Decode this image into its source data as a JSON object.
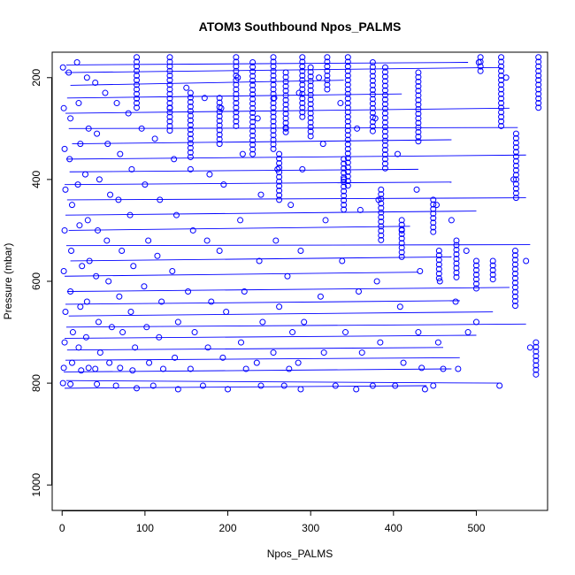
{
  "chart_data": {
    "type": "scatter",
    "title": "ATOM3 Southbound Npos_PALMS",
    "xlabel": "Npos_PALMS",
    "ylabel": "Pressure (mbar)",
    "xlim": [
      -12,
      586
    ],
    "ylim": [
      1050,
      150
    ],
    "y_reversed": true,
    "x_ticks": [
      0,
      100,
      200,
      300,
      400,
      500
    ],
    "y_ticks": [
      200,
      400,
      600,
      800,
      1000
    ],
    "grid": false,
    "legend": "none",
    "series_color": "#0000ff",
    "points": [
      [
        1,
        180
      ],
      [
        2,
        260
      ],
      [
        3,
        340
      ],
      [
        4,
        420
      ],
      [
        3,
        500
      ],
      [
        2,
        580
      ],
      [
        4,
        660
      ],
      [
        3,
        720
      ],
      [
        2,
        770
      ],
      [
        1,
        800
      ],
      [
        8,
        190
      ],
      [
        10,
        280
      ],
      [
        9,
        360
      ],
      [
        12,
        450
      ],
      [
        11,
        540
      ],
      [
        10,
        620
      ],
      [
        13,
        700
      ],
      [
        12,
        760
      ],
      [
        10,
        802
      ],
      [
        18,
        170
      ],
      [
        20,
        250
      ],
      [
        22,
        330
      ],
      [
        19,
        410
      ],
      [
        21,
        490
      ],
      [
        24,
        570
      ],
      [
        22,
        650
      ],
      [
        20,
        730
      ],
      [
        23,
        775
      ],
      [
        30,
        200
      ],
      [
        32,
        300
      ],
      [
        28,
        390
      ],
      [
        31,
        480
      ],
      [
        33,
        560
      ],
      [
        30,
        640
      ],
      [
        29,
        710
      ],
      [
        32,
        770
      ],
      [
        40,
        210
      ],
      [
        42,
        310
      ],
      [
        45,
        400
      ],
      [
        43,
        500
      ],
      [
        41,
        590
      ],
      [
        44,
        680
      ],
      [
        46,
        740
      ],
      [
        40,
        772
      ],
      [
        42,
        802
      ],
      [
        52,
        230
      ],
      [
        55,
        330
      ],
      [
        58,
        430
      ],
      [
        54,
        520
      ],
      [
        56,
        600
      ],
      [
        60,
        690
      ],
      [
        57,
        760
      ],
      [
        66,
        250
      ],
      [
        70,
        350
      ],
      [
        68,
        440
      ],
      [
        72,
        540
      ],
      [
        69,
        630
      ],
      [
        73,
        700
      ],
      [
        70,
        770
      ],
      [
        65,
        805
      ],
      [
        80,
        270
      ],
      [
        84,
        380
      ],
      [
        82,
        470
      ],
      [
        86,
        570
      ],
      [
        83,
        660
      ],
      [
        88,
        730
      ],
      [
        85,
        775
      ],
      [
        90,
        810
      ],
      [
        96,
        300
      ],
      [
        100,
        410
      ],
      [
        104,
        520
      ],
      [
        99,
        610
      ],
      [
        102,
        690
      ],
      [
        105,
        760
      ],
      [
        112,
        320
      ],
      [
        118,
        440
      ],
      [
        115,
        550
      ],
      [
        120,
        640
      ],
      [
        117,
        710
      ],
      [
        122,
        772
      ],
      [
        110,
        805
      ],
      [
        130,
        260
      ],
      [
        135,
        360
      ],
      [
        138,
        470
      ],
      [
        133,
        580
      ],
      [
        140,
        680
      ],
      [
        136,
        750
      ],
      [
        140,
        812
      ],
      [
        150,
        220
      ],
      [
        155,
        380
      ],
      [
        158,
        500
      ],
      [
        152,
        620
      ],
      [
        160,
        700
      ],
      [
        155,
        772
      ],
      [
        172,
        240
      ],
      [
        178,
        390
      ],
      [
        175,
        520
      ],
      [
        180,
        640
      ],
      [
        176,
        730
      ],
      [
        170,
        805
      ],
      [
        192,
        260
      ],
      [
        195,
        410
      ],
      [
        190,
        540
      ],
      [
        198,
        660
      ],
      [
        194,
        750
      ],
      [
        200,
        812
      ],
      [
        212,
        200
      ],
      [
        218,
        350
      ],
      [
        215,
        480
      ],
      [
        220,
        620
      ],
      [
        216,
        720
      ],
      [
        222,
        772
      ],
      [
        236,
        280
      ],
      [
        240,
        430
      ],
      [
        238,
        560
      ],
      [
        242,
        680
      ],
      [
        235,
        760
      ],
      [
        240,
        805
      ],
      [
        256,
        240
      ],
      [
        260,
        380
      ],
      [
        258,
        520
      ],
      [
        262,
        650
      ],
      [
        255,
        740
      ],
      [
        270,
        300
      ],
      [
        276,
        450
      ],
      [
        272,
        590
      ],
      [
        278,
        700
      ],
      [
        274,
        772
      ],
      [
        268,
        805
      ],
      [
        286,
        230
      ],
      [
        290,
        380
      ],
      [
        288,
        540
      ],
      [
        292,
        680
      ],
      [
        285,
        760
      ],
      [
        288,
        812
      ],
      [
        310,
        200
      ],
      [
        315,
        330
      ],
      [
        318,
        480
      ],
      [
        312,
        630
      ],
      [
        316,
        740
      ],
      [
        336,
        250
      ],
      [
        340,
        400
      ],
      [
        338,
        560
      ],
      [
        342,
        700
      ],
      [
        330,
        805
      ],
      [
        356,
        300
      ],
      [
        360,
        460
      ],
      [
        358,
        620
      ],
      [
        362,
        740
      ],
      [
        355,
        812
      ],
      [
        378,
        280
      ],
      [
        382,
        440
      ],
      [
        380,
        600
      ],
      [
        384,
        720
      ],
      [
        375,
        805
      ],
      [
        405,
        350
      ],
      [
        410,
        500
      ],
      [
        408,
        650
      ],
      [
        412,
        760
      ],
      [
        402,
        805
      ],
      [
        428,
        420
      ],
      [
        432,
        580
      ],
      [
        430,
        700
      ],
      [
        434,
        770
      ],
      [
        438,
        812
      ],
      [
        452,
        450
      ],
      [
        456,
        600
      ],
      [
        454,
        720
      ],
      [
        460,
        772
      ],
      [
        448,
        805
      ],
      [
        470,
        480
      ],
      [
        475,
        640
      ],
      [
        478,
        772
      ],
      [
        488,
        540
      ],
      [
        490,
        700
      ],
      [
        503,
        170
      ],
      [
        500,
        680
      ],
      [
        528,
        805
      ],
      [
        536,
        200
      ],
      [
        545,
        400
      ],
      [
        560,
        560
      ],
      [
        565,
        730
      ]
    ],
    "lines": [
      [
        [
          5,
          175
        ],
        [
          490,
          170
        ]
      ],
      [
        [
          3,
          190
        ],
        [
          530,
          180
        ]
      ],
      [
        [
          10,
          215
        ],
        [
          340,
          205
        ]
      ],
      [
        [
          6,
          240
        ],
        [
          410,
          232
        ]
      ],
      [
        [
          4,
          270
        ],
        [
          540,
          260
        ]
      ],
      [
        [
          8,
          300
        ],
        [
          550,
          298
        ]
      ],
      [
        [
          12,
          330
        ],
        [
          470,
          322
        ]
      ],
      [
        [
          5,
          360
        ],
        [
          560,
          352
        ]
      ],
      [
        [
          9,
          385
        ],
        [
          430,
          380
        ]
      ],
      [
        [
          3,
          410
        ],
        [
          470,
          405
        ]
      ],
      [
        [
          6,
          440
        ],
        [
          560,
          436
        ]
      ],
      [
        [
          4,
          470
        ],
        [
          500,
          462
        ]
      ],
      [
        [
          8,
          500
        ],
        [
          420,
          492
        ]
      ],
      [
        [
          5,
          530
        ],
        [
          565,
          528
        ]
      ],
      [
        [
          10,
          560
        ],
        [
          470,
          552
        ]
      ],
      [
        [
          3,
          590
        ],
        [
          430,
          582
        ]
      ],
      [
        [
          6,
          620
        ],
        [
          540,
          612
        ]
      ],
      [
        [
          4,
          645
        ],
        [
          480,
          638
        ]
      ],
      [
        [
          8,
          668
        ],
        [
          520,
          660
        ]
      ],
      [
        [
          5,
          690
        ],
        [
          560,
          684
        ]
      ],
      [
        [
          3,
          712
        ],
        [
          500,
          706
        ]
      ],
      [
        [
          6,
          735
        ],
        [
          460,
          730
        ]
      ],
      [
        [
          4,
          755
        ],
        [
          480,
          750
        ]
      ],
      [
        [
          2,
          778
        ],
        [
          470,
          772
        ]
      ],
      [
        [
          5,
          795
        ],
        [
          530,
          800
        ]
      ],
      [
        [
          3,
          810
        ],
        [
          440,
          805
        ]
      ]
    ],
    "stacks": [
      [
        90,
        160,
        260
      ],
      [
        130,
        160,
        310
      ],
      [
        155,
        230,
        360
      ],
      [
        190,
        240,
        330
      ],
      [
        210,
        160,
        300
      ],
      [
        230,
        170,
        350
      ],
      [
        255,
        160,
        340
      ],
      [
        270,
        190,
        310
      ],
      [
        290,
        160,
        280
      ],
      [
        300,
        180,
        320
      ],
      [
        320,
        160,
        230
      ],
      [
        345,
        160,
        420
      ],
      [
        375,
        170,
        310
      ],
      [
        390,
        180,
        380
      ],
      [
        430,
        190,
        330
      ],
      [
        505,
        160,
        190
      ],
      [
        530,
        160,
        300
      ],
      [
        548,
        310,
        440
      ],
      [
        575,
        160,
        260
      ],
      [
        262,
        350,
        440
      ],
      [
        340,
        360,
        460
      ],
      [
        385,
        420,
        520
      ],
      [
        410,
        480,
        560
      ],
      [
        448,
        440,
        510
      ],
      [
        455,
        540,
        600
      ],
      [
        476,
        520,
        600
      ],
      [
        500,
        560,
        620
      ],
      [
        520,
        560,
        600
      ],
      [
        547,
        540,
        650
      ],
      [
        572,
        720,
        790
      ]
    ]
  }
}
